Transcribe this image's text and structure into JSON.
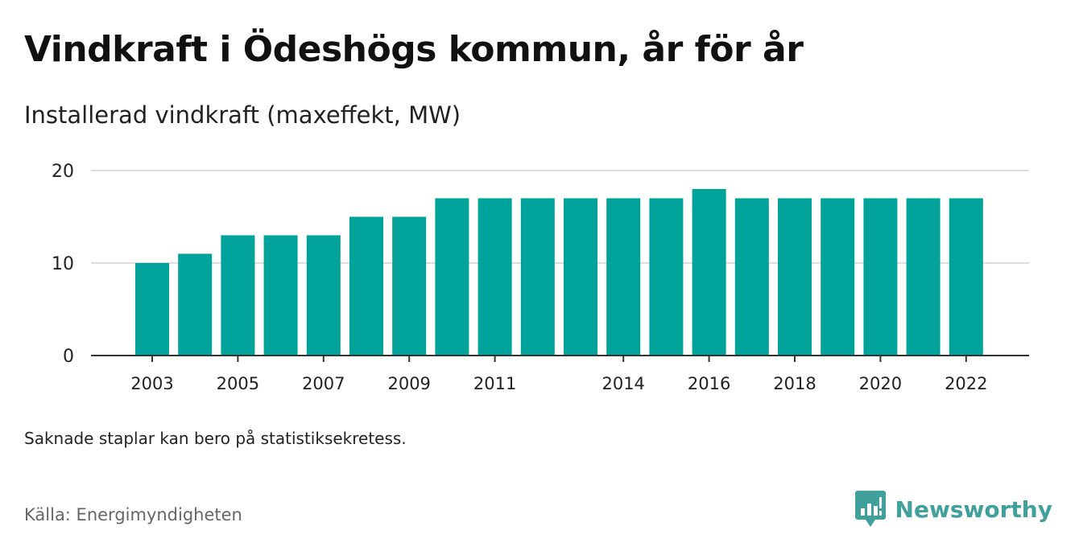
{
  "header": {
    "title": "Vindkraft i Ödeshögs kommun, år för år",
    "subtitle": "Installerad vindkraft (maxeffekt, MW)"
  },
  "footer": {
    "note": "Saknade staplar kan bero på statistiksekretess.",
    "source": "Källa: Energimyndigheten",
    "brand": "Newsworthy"
  },
  "colors": {
    "bar": "#00a39a",
    "grid": "#dddddd",
    "axis": "#333333",
    "brand": "#3fa09c"
  },
  "chart_data": {
    "type": "bar",
    "categories": [
      "2003",
      "2004",
      "2005",
      "2006",
      "2007",
      "2008",
      "2009",
      "2010",
      "2011",
      "2012",
      "2013",
      "2014",
      "2015",
      "2016",
      "2017",
      "2018",
      "2019",
      "2020",
      "2021",
      "2022"
    ],
    "values": [
      10,
      11,
      13,
      13,
      13,
      15,
      15,
      17,
      17,
      17,
      17,
      17,
      17,
      18,
      17,
      17,
      17,
      17,
      17,
      17
    ],
    "x_tick_labels": [
      "2003",
      "2005",
      "2007",
      "2009",
      "2011",
      "2014",
      "2016",
      "2018",
      "2020",
      "2022"
    ],
    "y_ticks": [
      0,
      10,
      20
    ],
    "ylim": [
      0,
      20
    ],
    "title": "Vindkraft i Ödeshögs kommun, år för år",
    "ylabel": "Installerad vindkraft (maxeffekt, MW)",
    "xlabel": "",
    "grid": true,
    "legend": "none"
  }
}
